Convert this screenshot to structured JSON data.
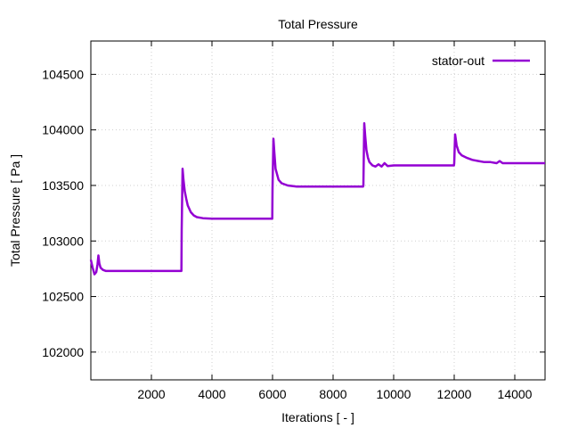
{
  "chart_data": {
    "type": "line",
    "title": "Total Pressure",
    "xlabel": "Iterations [ - ]",
    "ylabel": "Total Pressure [ Pa ]",
    "xlim": [
      0,
      15000
    ],
    "ylim": [
      101750,
      104800
    ],
    "x_ticks": [
      2000,
      4000,
      6000,
      8000,
      10000,
      12000,
      14000
    ],
    "x_tick_labels": [
      "2000",
      "4000",
      "6000",
      "8000",
      "10000",
      "12000",
      "14000"
    ],
    "y_ticks": [
      102000,
      102500,
      103000,
      103500,
      104000,
      104500
    ],
    "y_tick_labels": [
      "102000",
      "102500",
      "103000",
      "103500",
      "104000",
      "104500"
    ],
    "grid": true,
    "legend_position": "top-right",
    "series": [
      {
        "name": "stator-out",
        "color": "#9400d3",
        "x": [
          0,
          60,
          120,
          180,
          220,
          250,
          280,
          320,
          400,
          500,
          700,
          1000,
          1500,
          2000,
          2500,
          2990,
          3000,
          3030,
          3060,
          3100,
          3150,
          3200,
          3300,
          3400,
          3500,
          3700,
          4000,
          4500,
          5000,
          5500,
          5990,
          6000,
          6030,
          6060,
          6100,
          6200,
          6300,
          6500,
          6800,
          7000,
          7500,
          8000,
          8500,
          8990,
          9000,
          9030,
          9060,
          9100,
          9150,
          9200,
          9300,
          9400,
          9500,
          9600,
          9700,
          9800,
          10000,
          10500,
          11000,
          11500,
          11990,
          12000,
          12030,
          12080,
          12150,
          12250,
          12400,
          12600,
          12800,
          13000,
          13200,
          13400,
          13500,
          13600,
          13800,
          14000,
          14500,
          15000
        ],
        "y": [
          102830,
          102760,
          102700,
          102720,
          102790,
          102870,
          102800,
          102760,
          102740,
          102730,
          102730,
          102730,
          102730,
          102730,
          102730,
          102730,
          103100,
          103650,
          103550,
          103450,
          103380,
          103320,
          103260,
          103230,
          103215,
          103205,
          103200,
          103200,
          103200,
          103200,
          103200,
          103480,
          103920,
          103800,
          103650,
          103550,
          103520,
          103500,
          103490,
          103490,
          103490,
          103490,
          103490,
          103490,
          103500,
          104060,
          103950,
          103820,
          103750,
          103710,
          103680,
          103670,
          103690,
          103670,
          103700,
          103675,
          103680,
          103680,
          103680,
          103680,
          103680,
          103700,
          103960,
          103860,
          103800,
          103770,
          103750,
          103730,
          103720,
          103710,
          103710,
          103700,
          103720,
          103700,
          103700,
          103700,
          103700,
          103700
        ]
      }
    ]
  }
}
